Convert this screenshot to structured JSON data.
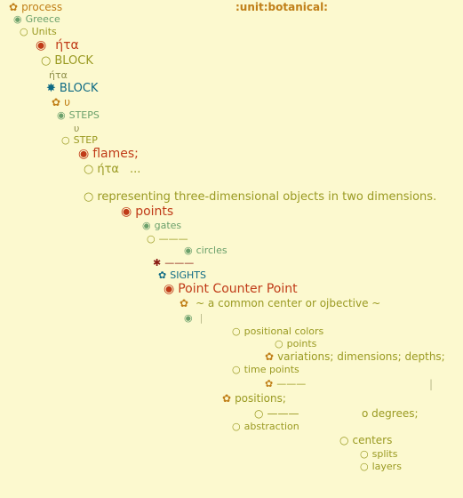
{
  "glyphs": {
    "flower": "✿",
    "ring": "○",
    "dot": "◉",
    "star": "✸",
    "asterisk": "✱"
  },
  "nodes": {
    "process": "process",
    "unit": ":unit:botanical:",
    "greece": "Greece",
    "units": "Units",
    "eta1": "ήτα",
    "block1": "BLOCK",
    "eta2": "ήτα",
    "block2": "BLOCK",
    "upsilon1": "υ",
    "steps": "STEPS",
    "upsilon2": "υ",
    "step": "STEP",
    "flames": "flames;",
    "eta3": "ήτα",
    "ellipsis": "...",
    "representing": "representing three-dimensional objects in two dimensions.",
    "points1": "points",
    "gates": "gates",
    "dash1": "———",
    "circles": "circles",
    "dash2": "———",
    "sights": "SIGHTS",
    "pcp": "Point Counter Point",
    "center": "~ a common center or ojbective ~",
    "bar1": "|",
    "positional": "positional colors",
    "points2": "points",
    "variations": "variations; dimensions; depths;",
    "timepoints": "time points",
    "dash3": "———",
    "bar2": "|",
    "positions": "positions;",
    "dash4": "———",
    "odegrees": "o degrees;",
    "abstraction": "abstraction",
    "centers": "centers",
    "splits": "splits",
    "layers": "layers"
  }
}
